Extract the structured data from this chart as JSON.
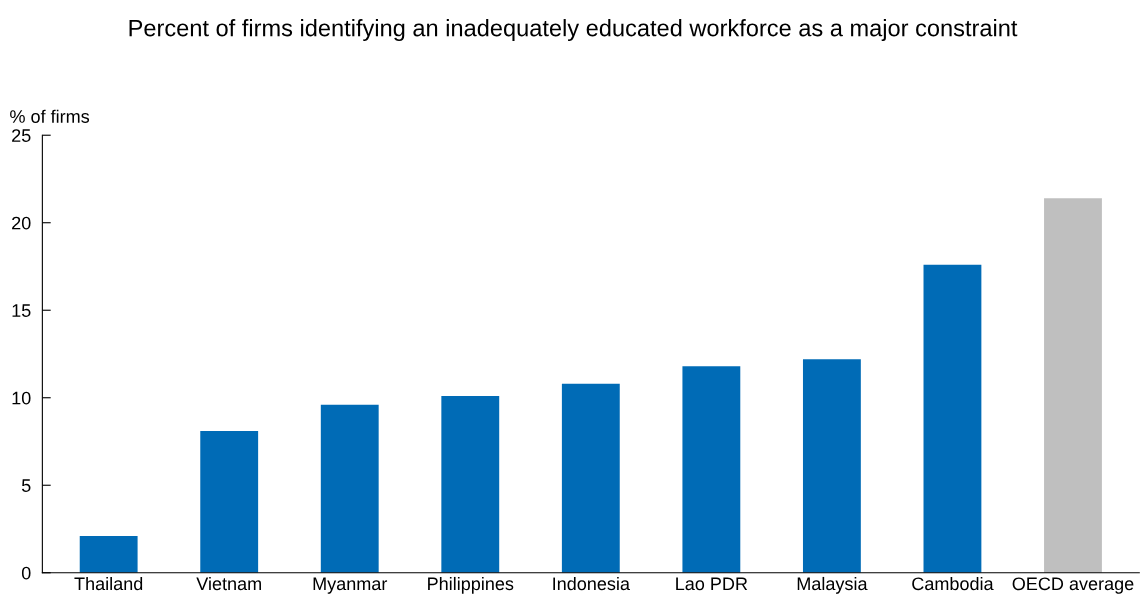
{
  "chart_data": {
    "type": "bar",
    "title": "Percent of firms identifying an inadequately educated workforce as a major constraint",
    "ylabel": "% of firms",
    "categories": [
      "Thailand",
      "Vietnam",
      "Myanmar",
      "Philippines",
      "Indonesia",
      "Lao PDR",
      "Malaysia",
      "Cambodia",
      "OECD average"
    ],
    "values": [
      2.1,
      8.1,
      9.6,
      10.1,
      10.8,
      11.8,
      12.2,
      17.6,
      21.4
    ],
    "colors": [
      "#006bb6",
      "#006bb6",
      "#006bb6",
      "#006bb6",
      "#006bb6",
      "#006bb6",
      "#006bb6",
      "#006bb6",
      "#bfbfbf"
    ],
    "ylim": [
      0,
      25
    ],
    "yticks": [
      0,
      5,
      10,
      15,
      20,
      25
    ],
    "grid": false
  }
}
